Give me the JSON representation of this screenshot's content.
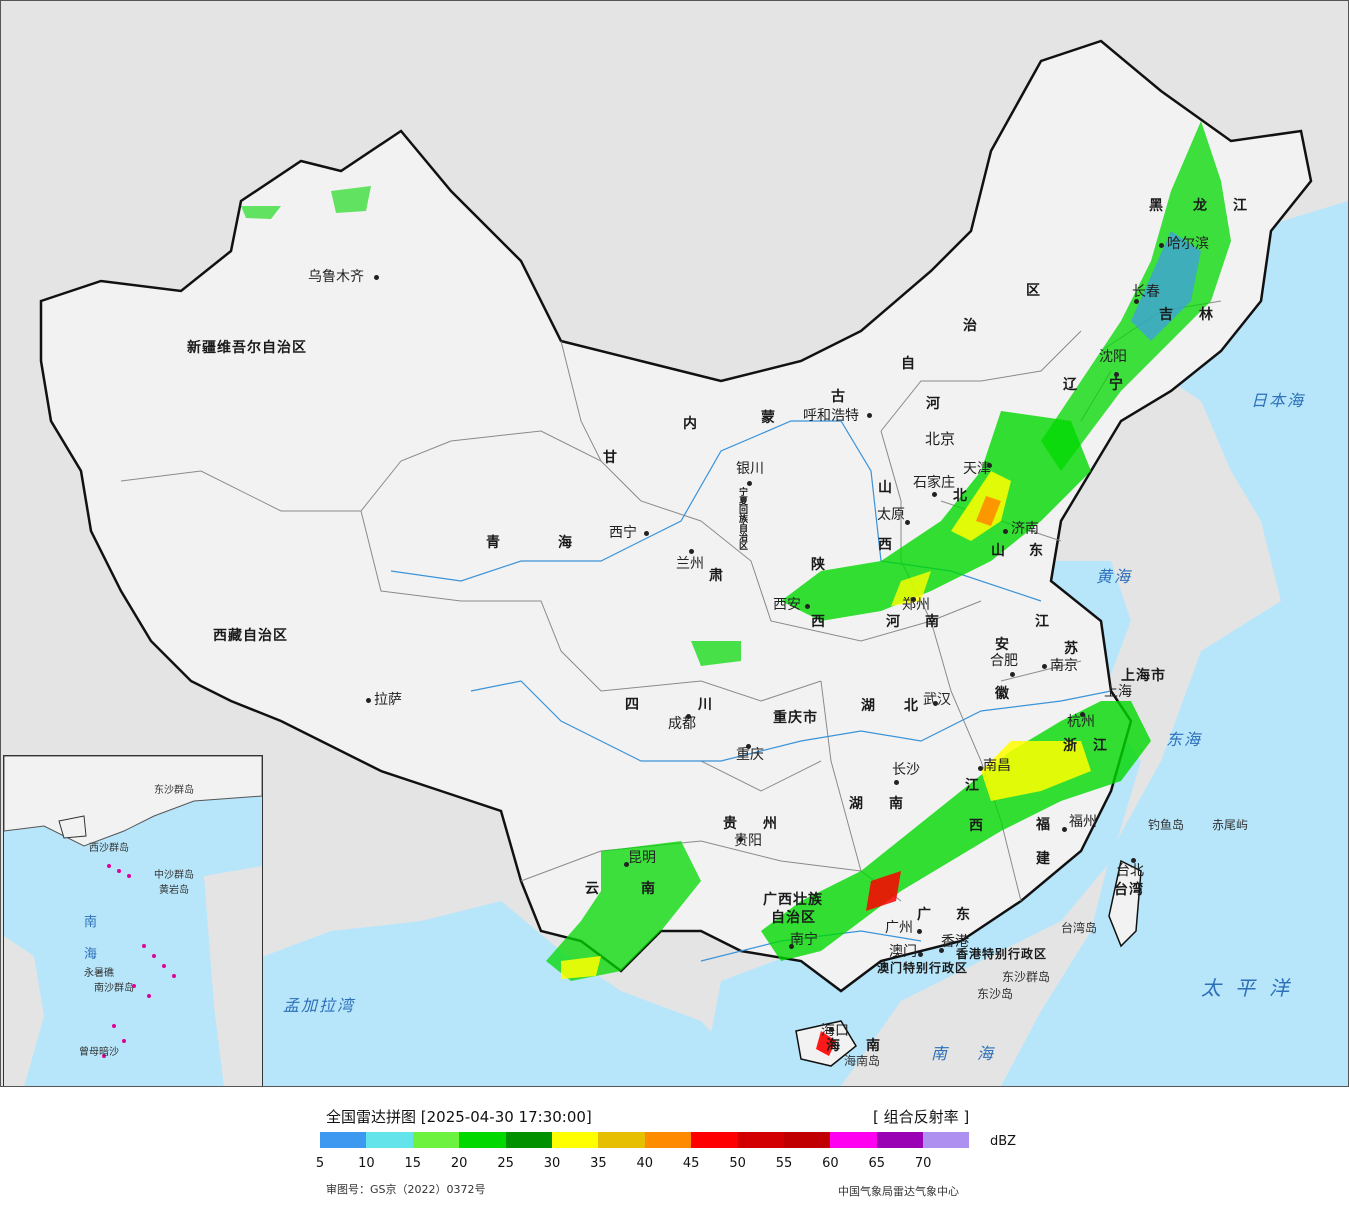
{
  "map": {
    "provinces": [
      {
        "name": "新疆维吾尔自治区"
      },
      {
        "name": "西藏自治区"
      },
      {
        "name": "青"
      },
      {
        "name": "海"
      },
      {
        "name": "甘"
      },
      {
        "name": "肃"
      },
      {
        "name": "内"
      },
      {
        "name": "蒙"
      },
      {
        "name": "古"
      },
      {
        "name": "自"
      },
      {
        "name": "治"
      },
      {
        "name": "区"
      },
      {
        "name": "黑"
      },
      {
        "name": "龙"
      },
      {
        "name": "江"
      },
      {
        "name": "吉"
      },
      {
        "name": "林"
      },
      {
        "name": "辽"
      },
      {
        "name": "宁"
      },
      {
        "name": "河"
      },
      {
        "name": "北"
      },
      {
        "name": "山"
      },
      {
        "name": "西"
      },
      {
        "name": "山"
      },
      {
        "name": "东"
      },
      {
        "name": "陕"
      },
      {
        "name": "西"
      },
      {
        "name": "河"
      },
      {
        "name": "南"
      },
      {
        "name": "江"
      },
      {
        "name": "苏"
      },
      {
        "name": "安"
      },
      {
        "name": "徽"
      },
      {
        "name": "四"
      },
      {
        "name": "川"
      },
      {
        "name": "湖"
      },
      {
        "name": "北"
      },
      {
        "name": "重庆市"
      },
      {
        "name": "湖"
      },
      {
        "name": "南"
      },
      {
        "name": "江"
      },
      {
        "name": "西"
      },
      {
        "name": "浙"
      },
      {
        "name": "江"
      },
      {
        "name": "贵"
      },
      {
        "name": "州"
      },
      {
        "name": "福"
      },
      {
        "name": "建"
      },
      {
        "name": "云"
      },
      {
        "name": "南"
      },
      {
        "name": "广西壮族"
      },
      {
        "name": "自治区"
      },
      {
        "name": "广"
      },
      {
        "name": "东"
      },
      {
        "name": "海"
      },
      {
        "name": "南"
      },
      {
        "name": "台湾"
      },
      {
        "name": "上海市"
      },
      {
        "name": "香港特别行政区"
      },
      {
        "name": "澳门特别行政区"
      },
      {
        "name": "宁夏回族自治区"
      }
    ],
    "cities": [
      {
        "name": "乌鲁木齐"
      },
      {
        "name": "拉萨"
      },
      {
        "name": "西宁"
      },
      {
        "name": "兰州"
      },
      {
        "name": "银川"
      },
      {
        "name": "呼和浩特"
      },
      {
        "name": "北京"
      },
      {
        "name": "天津"
      },
      {
        "name": "石家庄"
      },
      {
        "name": "太原"
      },
      {
        "name": "济南"
      },
      {
        "name": "郑州"
      },
      {
        "name": "西安"
      },
      {
        "name": "哈尔滨"
      },
      {
        "name": "长春"
      },
      {
        "name": "沈阳"
      },
      {
        "name": "合肥"
      },
      {
        "name": "南京"
      },
      {
        "name": "上海"
      },
      {
        "name": "杭州"
      },
      {
        "name": "武汉"
      },
      {
        "name": "成都"
      },
      {
        "name": "重庆"
      },
      {
        "name": "长沙"
      },
      {
        "name": "南昌"
      },
      {
        "name": "贵阳"
      },
      {
        "name": "福州"
      },
      {
        "name": "台北"
      },
      {
        "name": "昆明"
      },
      {
        "name": "南宁"
      },
      {
        "name": "广州"
      },
      {
        "name": "澳门"
      },
      {
        "name": "香港"
      },
      {
        "name": "海口"
      }
    ],
    "seas": [
      {
        "name": "日本海"
      },
      {
        "name": "黄海"
      },
      {
        "name": "东海"
      },
      {
        "name": "太平洋"
      },
      {
        "name": "南海"
      },
      {
        "name": "孟加拉湾"
      }
    ],
    "islands": [
      {
        "name": "钓鱼岛"
      },
      {
        "name": "赤尾屿"
      },
      {
        "name": "台湾岛"
      },
      {
        "name": "海南岛"
      },
      {
        "name": "东沙群岛"
      },
      {
        "name": "东沙岛"
      }
    ],
    "inset": {
      "labels": [
        "南",
        "海",
        "东沙群岛",
        "中沙群岛",
        "西沙群岛",
        "南沙群岛",
        "永暑礁",
        "曾母暗沙",
        "黄岩岛"
      ]
    },
    "colors": {
      "sea": "#b7e6fb",
      "land": "#f0f0f0",
      "outside": "#e6e6e6"
    }
  },
  "legend": {
    "title": "全国雷达拼图 [2025-04-30 17:30:00]",
    "product": "[ 组合反射率 ]",
    "unit": "dBZ",
    "ticks": [
      "5",
      "10",
      "15",
      "20",
      "25",
      "30",
      "35",
      "40",
      "45",
      "50",
      "55",
      "60",
      "65",
      "70"
    ],
    "colors": [
      "#3d98f0",
      "#63e3ea",
      "#6cf23f",
      "#00d800",
      "#009000",
      "#ffff00",
      "#e6c000",
      "#ff8c00",
      "#ff0000",
      "#d20000",
      "#c00000",
      "#ff00f0",
      "#9a00b4",
      "#ae90f0"
    ],
    "approval": "审图号：GS京（2022）0372号",
    "producer": "中国气象局雷达气象中心"
  }
}
